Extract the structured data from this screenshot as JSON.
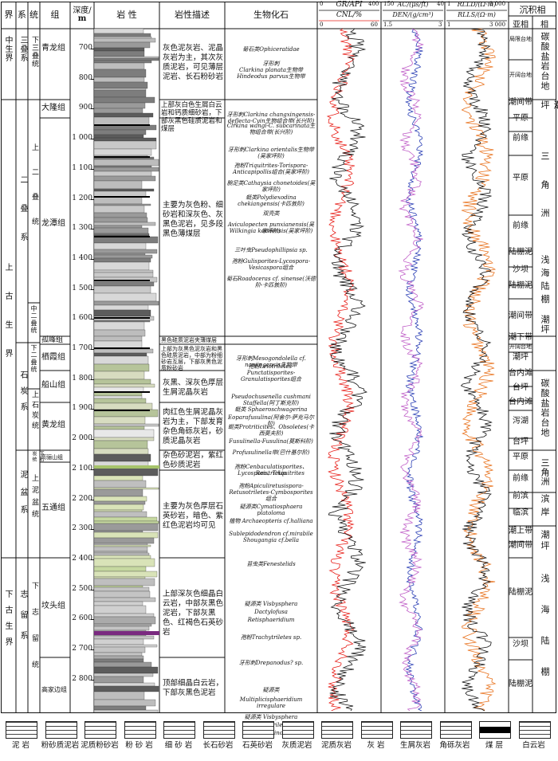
{
  "header": {
    "jie": "界",
    "xi": "系",
    "tong": "统",
    "zu": "组",
    "depth": "深度/",
    "depth_unit": "m",
    "lithology": "岩 性",
    "lith_desc": "岩性描述",
    "fossil": "生物化石",
    "gr": "GR/API",
    "cnl": "CNL/%",
    "ac": "AC/(μs/ft)",
    "den": "DEN/(g/cm³)",
    "rlld": "RLLD/(Ω·m)",
    "rlls": "RLLS/(Ω·m)",
    "facies": "沉积相",
    "subfacies": "亚相",
    "facies2": "相",
    "gr_min": "0",
    "gr_max": "400",
    "cnl_min": "0",
    "cnl_max": "60",
    "ac_min": "150",
    "ac_max": "40",
    "den_min": "1.5",
    "den_max": "3",
    "r_min": "1",
    "r_max": "3 000",
    "r2_min": "1",
    "r2_max": "3 000"
  },
  "depth_ticks": [
    "700",
    "800",
    "900",
    "1 000",
    "1 100",
    "1 200",
    "1 300",
    "1 400",
    "1 500",
    "1 600",
    "1 700",
    "1 800",
    "1 900",
    "2 000",
    "2 100",
    "2 200",
    "2 300",
    "2 400",
    "2 500",
    "2 600",
    "2 700",
    "2 800"
  ],
  "jie": [
    {
      "label": "中生界"
    },
    {
      "label": "上古生界"
    },
    {
      "label": "下古生界"
    }
  ],
  "xi": [
    {
      "label": "三叠系"
    },
    {
      "label": "二叠系"
    },
    {
      "label": "石炭系"
    },
    {
      "label": "泥盆系"
    },
    {
      "label": "志留系"
    }
  ],
  "tong": [
    {
      "label": "下三叠统"
    },
    {
      "label": "上二叠统"
    },
    {
      "label": "中二叠统"
    },
    {
      "label": "下二叠统"
    },
    {
      "label": "上石炭统"
    },
    {
      "label": "下石炭统"
    },
    {
      "label": "上泥盆统"
    },
    {
      "label": "下志留统"
    }
  ],
  "zu": [
    {
      "label": "青龙组"
    },
    {
      "label": "大隆组"
    },
    {
      "label": "龙潭组"
    },
    {
      "label": "孤峰组"
    },
    {
      "label": "栖霞组"
    },
    {
      "label": "船山组"
    },
    {
      "label": "黄龙组"
    },
    {
      "label": "高骊山组"
    },
    {
      "label": "五通组"
    },
    {
      "label": "坟头组"
    },
    {
      "label": "高家边组"
    }
  ],
  "descriptions": [
    {
      "text": "灰色泥灰岩、泥晶灰岩为主，其次灰质泥岩，可见薄层泥岩、长石粉砂岩"
    },
    {
      "text": "上部灰白色生屑白云岩和钙质细砂岩，下部灰黑色硅质泥岩和煤层"
    },
    {
      "text": "主要为灰色粉、细砂岩和深灰色、灰黑色泥岩，见多段黑色薄煤层"
    },
    {
      "text": "黑色硅质泥岩夹薄煤层"
    },
    {
      "text": "上部为灰黑色泥灰岩和黑色硅质泥岩，中部为粉细砂岩互层，下部灰黑色泥质粉砂岩"
    },
    {
      "text": "灰黑、深灰色厚层生屑泥晶灰岩"
    },
    {
      "text": "肉红色生屑泥晶灰岩为主，下部发育杂色角砾灰岩，砂质泥晶灰岩"
    },
    {
      "text": "杂色砂泥岩，紫红色砂质泥岩"
    },
    {
      "text": "主要为灰色厚层石英砂岩，暗色、紫红色泥岩均可见"
    },
    {
      "text": "上部深灰色细晶白云岩，中部灰黑色泥岩，下部灰黑色、红褐色石英砂岩"
    },
    {
      "text": "顶部细晶白云岩，下部灰黑色泥岩"
    }
  ],
  "fossils": [
    {
      "text": "菊石类Ophiceratidae"
    },
    {
      "text": "牙形刺"
    },
    {
      "text": "Clarkina planata生物带"
    },
    {
      "text": "Hindeodus parvus生物带"
    },
    {
      "text": "牙形刺Clarkina changxingensis-deflecta-Cyin生物组合带(长兴阶)"
    },
    {
      "text": "Clrkina wangi-C. subcarinata生物组合带(长兴阶)"
    },
    {
      "text": "牙形刺Clarkina orientalis生物带(吴家坪阶)"
    },
    {
      "text": "孢粉Triquitrites-Torispora-Anticapipollis组合(吴家坪阶)"
    },
    {
      "text": "腕足类Cathaysia chonetoides(吴家坪阶)"
    },
    {
      "text": "蜓类Polydiexodina chekiangensis(卡匹敦阶)"
    },
    {
      "text": "双壳类"
    },
    {
      "text": "Aviculopecten punxianensis(吴家坪阶)"
    },
    {
      "text": "Wilkingia komiensis(吴家坪阶)"
    },
    {
      "text": "三叶虫Pseudophillipsia sp."
    },
    {
      "text": "孢粉Gulisporites-Lycospora-Vesicaspora组合"
    },
    {
      "text": "菊石Roadoceras cf. sinense(沃德阶-卡匹敦阶)"
    },
    {
      "text": "牙形刺Mesogondolella cf. nanjingensis生物带"
    },
    {
      "text": "孢粉Leiotriletes-Punctatisporites-Granulatisporites组合"
    },
    {
      "text": "Pseudochusenella cushmani"
    },
    {
      "text": "Staffella(阿丁斯克阶)"
    },
    {
      "text": "蜓类 Sphaeroschwagerina"
    },
    {
      "text": "Eoparafusulina(阿舍尔-萨克马尔阶)"
    },
    {
      "text": "蜓类Protriticites、Obsoletes(卡西莫夫阶)"
    },
    {
      "text": "Fusulinella-Fusulina(莫斯科阶)"
    },
    {
      "text": "Profusulinella带(巴什基尔阶)"
    },
    {
      "text": "孢粉Cenbaculatisporites、Raistrickia"
    },
    {
      "text": "Lycospora、Triquitrites"
    },
    {
      "text": "孢粉Apiculiretusispora-Retusotriletes-Cymbosporites组合"
    },
    {
      "text": "疑源类Cymatiosphaera platoloma"
    },
    {
      "text": "植物 Archaeopteris cf.halliana"
    },
    {
      "text": "Sublepidodendron cf.mirabile"
    },
    {
      "text": "Shougangia cf.bella"
    },
    {
      "text": "苔虫类Fenestelids"
    },
    {
      "text": "疑源类 Visbysphera"
    },
    {
      "text": "Dactylofusa"
    },
    {
      "text": "Retisphaeridium"
    },
    {
      "text": "孢粉Trachytriletes sp."
    },
    {
      "text": "牙形刺Drepanodus? sp."
    },
    {
      "text": "疑源类"
    },
    {
      "text": "Multiplicisphaeridium irregulare"
    },
    {
      "text": "疑源类 Visbysphera"
    },
    {
      "text": "Trachytriletes"
    },
    {
      "text": "腹石 Chitinozoa"
    }
  ],
  "subfacies": [
    {
      "text": "局限台地"
    },
    {
      "text": "开阔台地"
    },
    {
      "text": "潮间带"
    },
    {
      "text": "平原"
    },
    {
      "text": "前缘"
    },
    {
      "text": "平原"
    },
    {
      "text": "前缘"
    },
    {
      "text": "陆棚泥"
    },
    {
      "text": "沙坝"
    },
    {
      "text": "陆棚泥"
    },
    {
      "text": "潮间带"
    },
    {
      "text": "潮下带"
    },
    {
      "text": "开阔台地"
    },
    {
      "text": "潮坪"
    },
    {
      "text": "台内滩"
    },
    {
      "text": "台坪"
    },
    {
      "text": "台内滩"
    },
    {
      "text": "泻湖"
    },
    {
      "text": "台坪"
    },
    {
      "text": "平原"
    },
    {
      "text": "前缘"
    },
    {
      "text": "前滨"
    },
    {
      "text": "临滨"
    },
    {
      "text": "潮上带"
    },
    {
      "text": "潮间带"
    },
    {
      "text": "陆棚泥"
    },
    {
      "text": "沙坝"
    },
    {
      "text": "陆棚泥"
    }
  ],
  "facies": [
    {
      "text": "碳酸盐岩台地"
    },
    {
      "text": "潮坪"
    },
    {
      "text": "三角洲"
    },
    {
      "text": "浅海陆棚"
    },
    {
      "text": "潮坪"
    },
    {
      "text": "碳酸盐岩台地"
    },
    {
      "text": "三角洲"
    },
    {
      "text": "滨岸"
    },
    {
      "text": "潮坪"
    },
    {
      "text": "浅海陆棚"
    }
  ],
  "legend": [
    {
      "label": "泥 岩"
    },
    {
      "label": "粉砂质泥岩"
    },
    {
      "label": "泥质粉砂岩"
    },
    {
      "label": "粉 砂 岩"
    },
    {
      "label": "细 砂 岩"
    },
    {
      "label": "长石砂岩"
    },
    {
      "label": "石英砂岩"
    },
    {
      "label": "灰质泥岩"
    },
    {
      "label": "泥质灰岩"
    },
    {
      "label": "灰 岩"
    },
    {
      "label": "生屑灰岩"
    },
    {
      "label": "角砾灰岩"
    },
    {
      "label": "煤 层"
    },
    {
      "label": "白云岩"
    }
  ],
  "colors": {
    "gr": "#111111",
    "cnl": "#e8201a",
    "ac": "#2b3fb5",
    "den": "#c060c8",
    "rlld": "#e8701a",
    "rlls": "#111111"
  }
}
